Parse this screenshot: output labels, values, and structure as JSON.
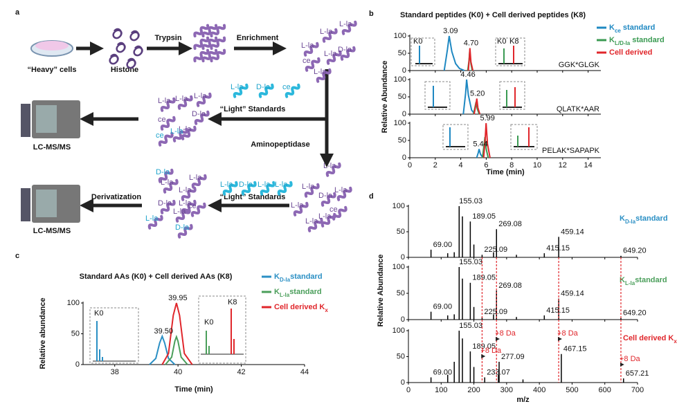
{
  "panel_labels": [
    "a",
    "b",
    "c",
    "d"
  ],
  "diagram": {
    "steps": [
      "“Heavy” cells",
      "Histone",
      "Trypsin",
      "Enrichment",
      "“Light” Standards",
      "LC-MS/MS",
      "Aminopeptidase",
      "“Light” Standards",
      "Derivatization",
      "LC-MS/MS"
    ],
    "tags": [
      "L-la",
      "L-la",
      "L-la",
      "L-la",
      "ce",
      "D-la",
      "L-la",
      "L-la",
      "D-la",
      "ce",
      "L-la",
      "L-la",
      "L-la",
      "D-la",
      "ce",
      "L-la",
      "ce",
      "L-la",
      "L-la",
      "L-la",
      "D-la",
      "L-la",
      "ce",
      "L-la",
      "L-la",
      "L-la",
      "L-la",
      "D-la",
      "L-la",
      "L-la",
      "D-la",
      "L-la",
      "L-la",
      "L-la",
      "D-la",
      "L-la",
      "ce",
      "L-la",
      "L-la",
      "D-la"
    ]
  },
  "chart_data": [
    {
      "type": "line",
      "title": "Standard peptides (K0) + Cell derived peptides (K8)",
      "xlabel": "Time (min)",
      "ylabel": "Relative Abundance",
      "xlim": [
        0,
        15
      ],
      "xticks": [
        0,
        2,
        4,
        6,
        8,
        10,
        12,
        14
      ],
      "ylim": [
        0,
        100
      ],
      "yticks": [
        0,
        50,
        100
      ],
      "legend": [
        {
          "name": [
            "K",
            "ce",
            " standard"
          ],
          "color": "#1e88c2"
        },
        {
          "name": [
            "K",
            "L/D-la",
            " standard"
          ],
          "color": "#3a9a52"
        },
        {
          "name": [
            "Cell derived"
          ],
          "color": "#e0262b"
        }
      ],
      "subplots": [
        {
          "label": "GGK*GLGK",
          "insets": [
            "K0",
            "K0",
            "K8"
          ],
          "series": [
            {
              "color": "#1e88c2",
              "x": [
                2.7,
                2.95,
                3.09,
                3.3,
                3.6,
                3.9,
                4.3
              ],
              "values": [
                0,
                60,
                100,
                55,
                20,
                6,
                0
              ]
            },
            {
              "color": "#3a9a52",
              "x": [
                4.55,
                4.65,
                4.7,
                4.8,
                4.9
              ],
              "values": [
                0,
                30,
                55,
                20,
                0
              ]
            },
            {
              "color": "#e0262b",
              "x": [
                4.6,
                4.68,
                4.72,
                4.8,
                4.95
              ],
              "values": [
                0,
                40,
                65,
                25,
                0
              ]
            }
          ],
          "annotations": [
            {
              "text": "3.09",
              "x": 3.09,
              "y": 100
            },
            {
              "text": "4.70",
              "x": 4.7,
              "y": 65
            }
          ]
        },
        {
          "label": "QLATK*AAR",
          "series": [
            {
              "color": "#1e88c2",
              "x": [
                4.2,
                4.38,
                4.46,
                4.6,
                4.85,
                5.1
              ],
              "values": [
                0,
                60,
                100,
                55,
                12,
                0
              ]
            },
            {
              "color": "#3a9a52",
              "x": [
                5.0,
                5.12,
                5.2,
                5.3,
                5.45
              ],
              "values": [
                0,
                20,
                35,
                15,
                0
              ]
            },
            {
              "color": "#e0262b",
              "x": [
                5.05,
                5.18,
                5.26,
                5.35,
                5.5
              ],
              "values": [
                0,
                25,
                45,
                18,
                0
              ]
            }
          ],
          "annotations": [
            {
              "text": "4.46",
              "x": 4.46,
              "y": 100
            },
            {
              "text": "5.20",
              "x": 5.2,
              "y": 45
            }
          ]
        },
        {
          "label": "PELAK*SAPAPK",
          "series": [
            {
              "color": "#1e88c2",
              "x": [
                5.25,
                5.38,
                5.44,
                5.55,
                5.75
              ],
              "values": [
                0,
                15,
                25,
                10,
                0
              ]
            },
            {
              "color": "#3a9a52",
              "x": [
                5.7,
                5.82,
                5.9,
                6.0,
                6.15
              ],
              "values": [
                0,
                35,
                60,
                25,
                0
              ]
            },
            {
              "color": "#e0262b",
              "x": [
                5.8,
                5.92,
                5.99,
                6.1,
                6.3
              ],
              "values": [
                0,
                55,
                100,
                40,
                0
              ]
            }
          ],
          "annotations": [
            {
              "text": "5.99",
              "x": 5.99,
              "y": 100
            },
            {
              "text": "5.44",
              "x": 5.44,
              "y": 25
            }
          ]
        }
      ]
    },
    {
      "type": "line",
      "title": "Standard AAs (K0) + Cell derived AAs (K8)",
      "xlabel": "Time (min)",
      "ylabel": "Relative abundance",
      "xlim": [
        37,
        44
      ],
      "xticks": [
        38,
        40,
        42,
        44
      ],
      "ylim": [
        0,
        100
      ],
      "yticks": [
        0,
        50,
        100
      ],
      "legend": [
        {
          "name": [
            "K",
            "D-la",
            "standard"
          ],
          "color": "#2a8fc4"
        },
        {
          "name": [
            "K",
            "L-la",
            "standard"
          ],
          "color": "#4a9e5a"
        },
        {
          "name": [
            "Cell derived K",
            "x"
          ],
          "color": "#e0262b"
        }
      ],
      "subplots": [
        {
          "insets": [
            "K0",
            "K0",
            "K8"
          ],
          "series": [
            {
              "color": "#2a8fc4",
              "x": [
                39.1,
                39.3,
                39.42,
                39.5,
                39.58,
                39.7,
                39.9
              ],
              "values": [
                0,
                10,
                35,
                46,
                35,
                10,
                0
              ]
            },
            {
              "color": "#4a9e5a",
              "x": [
                39.6,
                39.8,
                39.9,
                39.95,
                40.0,
                40.1,
                40.3
              ],
              "values": [
                0,
                12,
                38,
                45,
                38,
                12,
                0
              ]
            },
            {
              "color": "#e0262b",
              "x": [
                39.5,
                39.7,
                39.85,
                39.95,
                40.05,
                40.2,
                40.45
              ],
              "values": [
                0,
                18,
                80,
                100,
                80,
                18,
                0
              ]
            }
          ],
          "annotations": [
            {
              "text": "39.50",
              "x": 39.5,
              "y": 46
            },
            {
              "text": "39.95",
              "x": 39.95,
              "y": 100
            }
          ]
        }
      ]
    },
    {
      "type": "stem",
      "xlabel": "m/z",
      "ylabel": "Relative Abundance",
      "xlim": [
        0,
        700
      ],
      "xticks": [
        0,
        100,
        200,
        300,
        400,
        500,
        600,
        700
      ],
      "ylim": [
        0,
        100
      ],
      "yticks": [
        0,
        50,
        100
      ],
      "subplots": [
        {
          "label": [
            "K",
            "D-la",
            "standard"
          ],
          "color": "#2a8fc4",
          "x": [
            69.0,
            120,
            140,
            155.03,
            165,
            189.05,
            200,
            225.09,
            260,
            269.08,
            330,
            415.15,
            459.14,
            649.2
          ],
          "values": [
            15,
            8,
            10,
            100,
            80,
            70,
            25,
            5,
            10,
            55,
            5,
            8,
            40,
            3
          ],
          "labels": [
            "69.00",
            null,
            null,
            "155.03",
            null,
            "189.05",
            null,
            "225.09",
            null,
            "269.08",
            null,
            "415.15",
            "459.14",
            "649.20"
          ]
        },
        {
          "label": [
            "K",
            "L-la",
            "standard"
          ],
          "color": "#4a9e5a",
          "x": [
            69.0,
            120,
            140,
            155.03,
            165,
            189.05,
            200,
            225.09,
            260,
            269.08,
            330,
            415.15,
            459.14,
            649.2
          ],
          "values": [
            15,
            8,
            10,
            100,
            78,
            70,
            24,
            5,
            10,
            55,
            5,
            8,
            40,
            3
          ],
          "labels": [
            "69.00",
            null,
            null,
            "155.03",
            null,
            "189.05",
            null,
            "225.09",
            null,
            "269.08",
            null,
            "415.15",
            "459.14",
            "649.20"
          ]
        },
        {
          "label": [
            "Cell derived K",
            "x"
          ],
          "color": "#e0262b",
          "x": [
            69.0,
            120,
            140,
            155.03,
            165,
            189.05,
            200,
            233.07,
            275,
            277.09,
            350,
            467.15,
            657.21
          ],
          "values": [
            10,
            15,
            40,
            100,
            85,
            60,
            30,
            10,
            15,
            40,
            6,
            55,
            8
          ],
          "labels": [
            "69.00",
            null,
            null,
            "155.03",
            null,
            "189.05",
            null,
            "233.07",
            null,
            "277.09",
            null,
            "467.15",
            "657.21"
          ]
        }
      ],
      "shifts": [
        {
          "from": 225.09,
          "to": 233.07,
          "label": "+8 Da"
        },
        {
          "from": 269.08,
          "to": 277.09,
          "label": "+8 Da"
        },
        {
          "from": 459.14,
          "to": 467.15,
          "label": "+8 Da"
        },
        {
          "from": 649.2,
          "to": 657.21,
          "label": "+8 Da"
        }
      ]
    }
  ]
}
